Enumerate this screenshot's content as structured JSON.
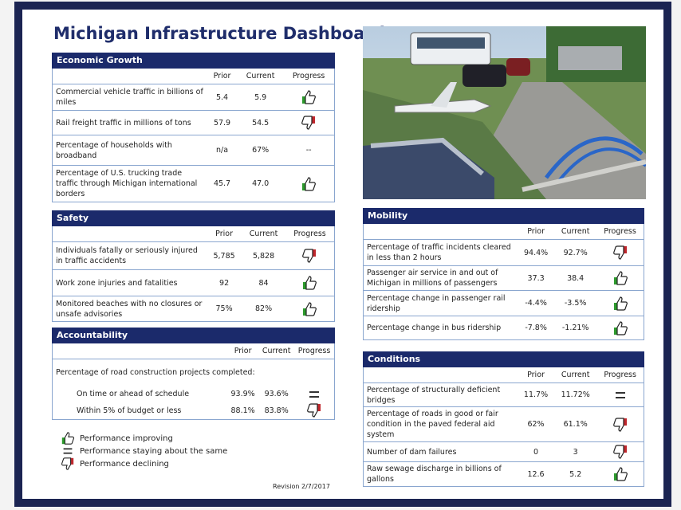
{
  "title": "Michigan Infrastructure Dashboard",
  "sections": [
    {
      "name": "Economic Growth",
      "columns": [
        "Prior",
        "Current",
        "Progress"
      ],
      "rows": [
        {
          "label": "Commercial vehicle traffic in billions of miles",
          "prior": "5.4",
          "current": "5.9"
        },
        {
          "label": "Rail freight traffic in millions of tons",
          "prior": "57.9",
          "current": "54.5"
        },
        {
          "label": "Percentage of households with broadband",
          "prior": "n/a",
          "current": "67%",
          "progress": "--"
        },
        {
          "label": "Percentage of U.S. trucking trade traffic through Michigan international borders",
          "prior": "45.7",
          "current": "47.0"
        }
      ]
    },
    {
      "name": "Safety",
      "columns": [
        "Prior",
        "Current",
        "Progress"
      ],
      "rows": [
        {
          "label": "Individuals fatally or seriously injured in traffic accidents",
          "prior": "5,785",
          "current": "5,828"
        },
        {
          "label": "Work zone injuries and fatalities",
          "prior": "92",
          "current": "84"
        },
        {
          "label": "Monitored beaches with no closures or unsafe advisories",
          "prior": "75%",
          "current": "82%"
        }
      ]
    },
    {
      "name": "Accountability",
      "columns": [
        "Prior",
        "Current",
        "Progress"
      ],
      "group_label": "Percentage of road construction projects completed:",
      "rows": [
        {
          "label": "On time or ahead of schedule",
          "prior": "93.9%",
          "current": "93.6%"
        },
        {
          "label": "Within 5% of budget or less",
          "prior": "88.1%",
          "current": "83.8%"
        }
      ]
    },
    {
      "name": "Mobility",
      "columns": [
        "Prior",
        "Current",
        "Progress"
      ],
      "rows": [
        {
          "label": "Percentage of traffic incidents cleared in less than 2 hours",
          "prior": "94.4%",
          "current": "92.7%"
        },
        {
          "label": "Passenger air service in and out of Michigan in millions of passengers",
          "prior": "37.3",
          "current": "38.4"
        },
        {
          "label": "Percentage change in passenger rail ridership",
          "prior": "-4.4%",
          "current": "-3.5%"
        },
        {
          "label": "Percentage change in bus ridership",
          "prior": "-7.8%",
          "current": "-1.21%"
        }
      ]
    },
    {
      "name": "Conditions",
      "columns": [
        "Prior",
        "Current",
        "Progress"
      ],
      "rows": [
        {
          "label": "Percentage of structurally deficient bridges",
          "prior": "11.7%",
          "current": "11.72%"
        },
        {
          "label": "Percentage of roads in good or fair condition in the paved federal aid system",
          "prior": "62%",
          "current": "61.1%"
        },
        {
          "label": "Number of dam failures",
          "prior": "0",
          "current": "3"
        },
        {
          "label": "Raw sewage discharge in billions of gallons",
          "prior": "12.6",
          "current": "5.2"
        }
      ]
    }
  ],
  "legend": [
    "Performance improving",
    "Performance staying about the same",
    "Performance declining"
  ],
  "revision": "Revision 2/7/2017"
}
